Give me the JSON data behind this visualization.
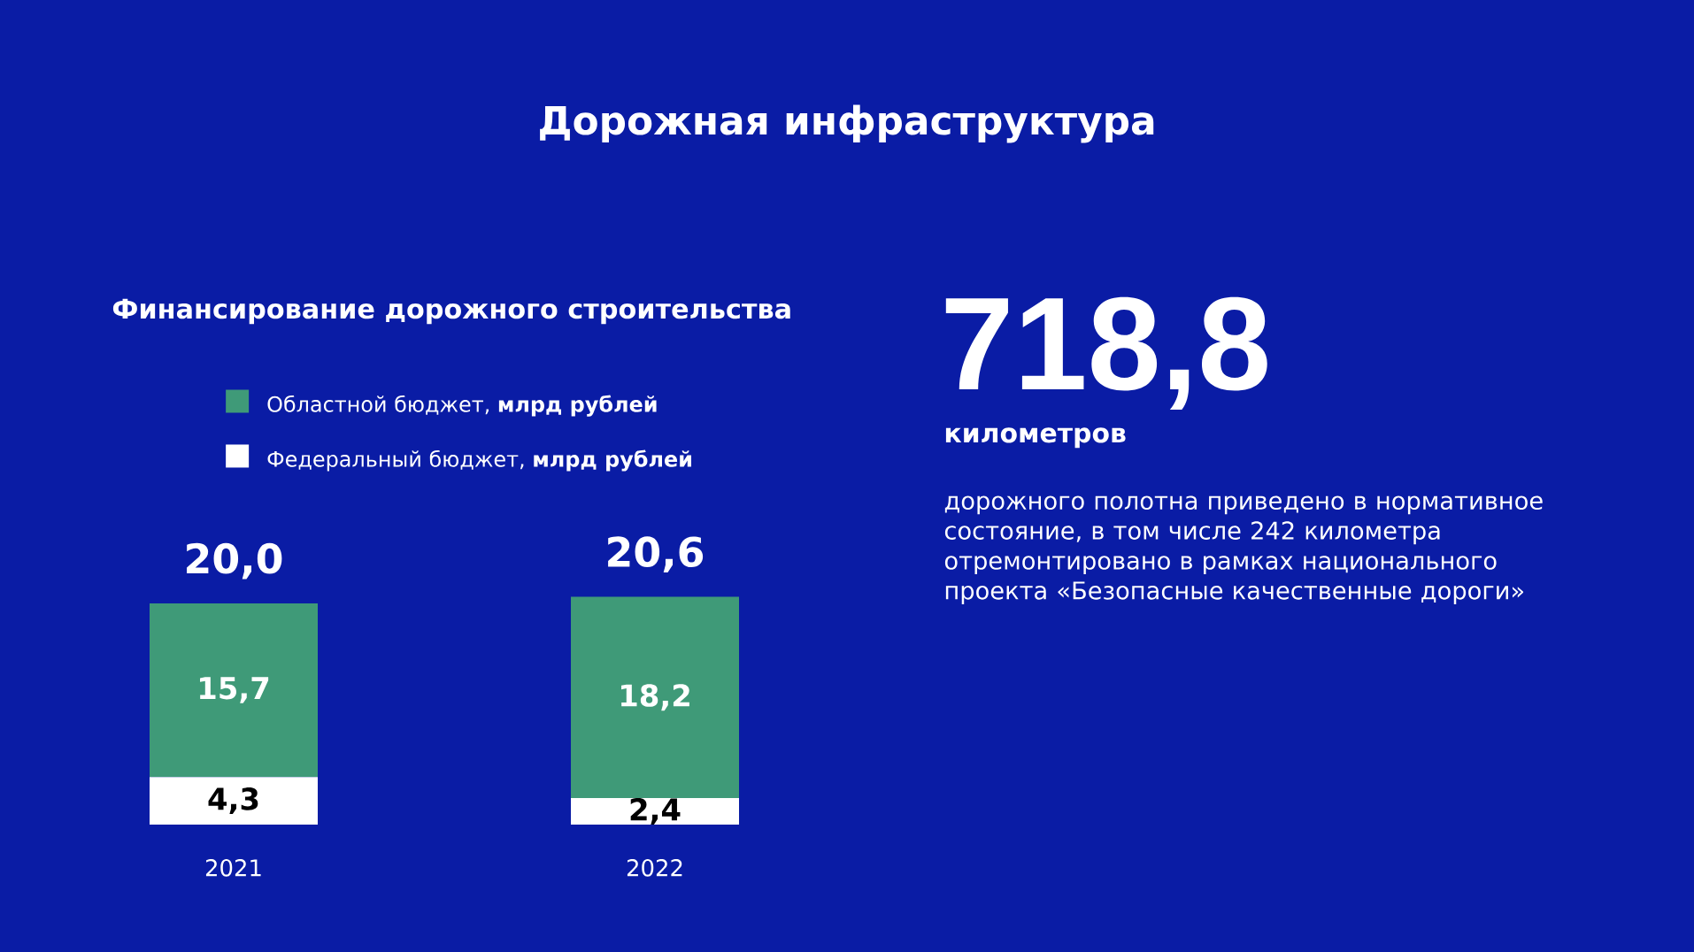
{
  "chart_data": [
    {
      "type": "bar",
      "title": "Дорожная инфраструктура",
      "subtitle": "Финансирование дорожного строительства",
      "categories": [
        "2021",
        "2022"
      ],
      "stacked": true,
      "legend": "top",
      "series": [
        {
          "name": "Федеральный бюджет, **млрд рублей**",
          "color": "#ffffff",
          "values": [
            4.3,
            2.4
          ],
          "value_labels": [
            "4,3",
            "2,4"
          ]
        },
        {
          "name": "Областной бюджет, **млрд рублей**",
          "color": "#3f9a78",
          "values": [
            15.7,
            18.2
          ],
          "value_labels": [
            "15,7",
            "18,2"
          ]
        }
      ],
      "totals": [
        "20,0",
        "20,6"
      ]
    },
    {
      "type": "other",
      "title": "718,8",
      "subtitle": "километров",
      "annotations": [
        "дорожного полотна приведено в нормативное состояние, в том числе 242 километра отремонтировано в рамках национального проекта «Безопасные качественные дороги»"
      ]
    }
  ]
}
